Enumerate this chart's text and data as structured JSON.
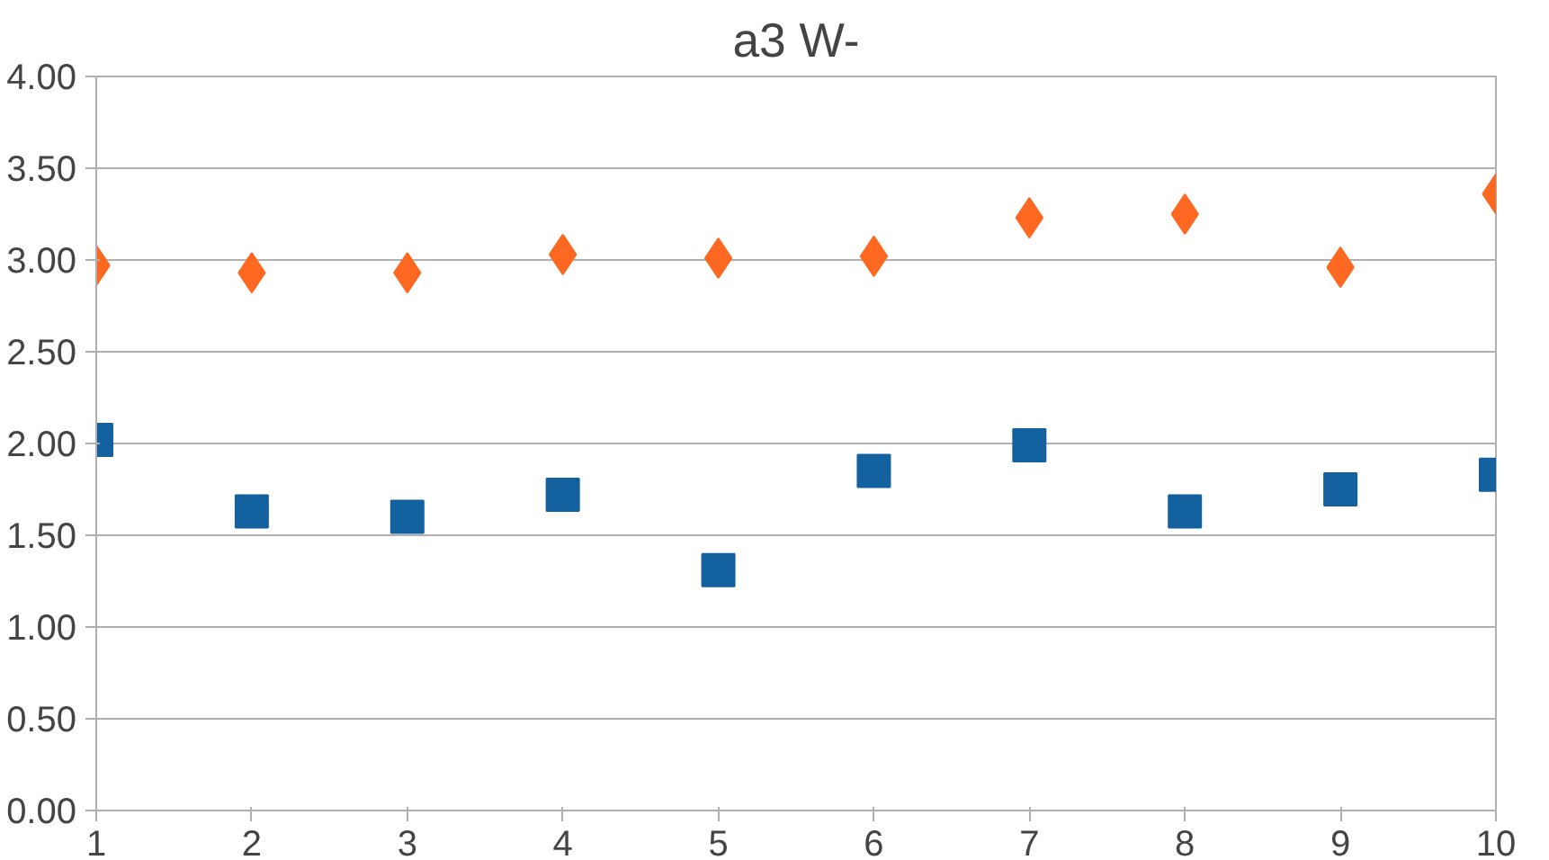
{
  "chart_data": {
    "type": "scatter",
    "title": "a3 W-",
    "x": [
      1,
      2,
      3,
      4,
      5,
      6,
      7,
      8,
      9,
      10
    ],
    "series": [
      {
        "color": "#ff6820",
        "marker": "diamond",
        "values": [
          2.97,
          2.93,
          2.93,
          3.03,
          3.01,
          3.02,
          3.23,
          3.25,
          2.96,
          3.36
        ]
      },
      {
        "color": "#13619e",
        "marker": "square",
        "values": [
          2.02,
          1.63,
          1.6,
          1.72,
          1.31,
          1.85,
          1.99,
          1.63,
          1.75,
          1.83
        ]
      }
    ],
    "xlim": [
      1,
      10
    ],
    "xticks": [
      1,
      2,
      3,
      4,
      5,
      6,
      7,
      8,
      9,
      10
    ],
    "ylim": [
      0,
      4
    ],
    "yticks": [
      {
        "value": 0,
        "label": "0.00"
      },
      {
        "value": 0.5,
        "label": "0.50"
      },
      {
        "value": 1,
        "label": "1.00"
      },
      {
        "value": 1.5,
        "label": "1.50"
      },
      {
        "value": 2,
        "label": "2.00"
      },
      {
        "value": 2.5,
        "label": "2.50"
      },
      {
        "value": 3,
        "label": "3.00"
      },
      {
        "value": 3.5,
        "label": "3.50"
      },
      {
        "value": 4,
        "label": "4.00"
      }
    ],
    "grid": "y"
  }
}
